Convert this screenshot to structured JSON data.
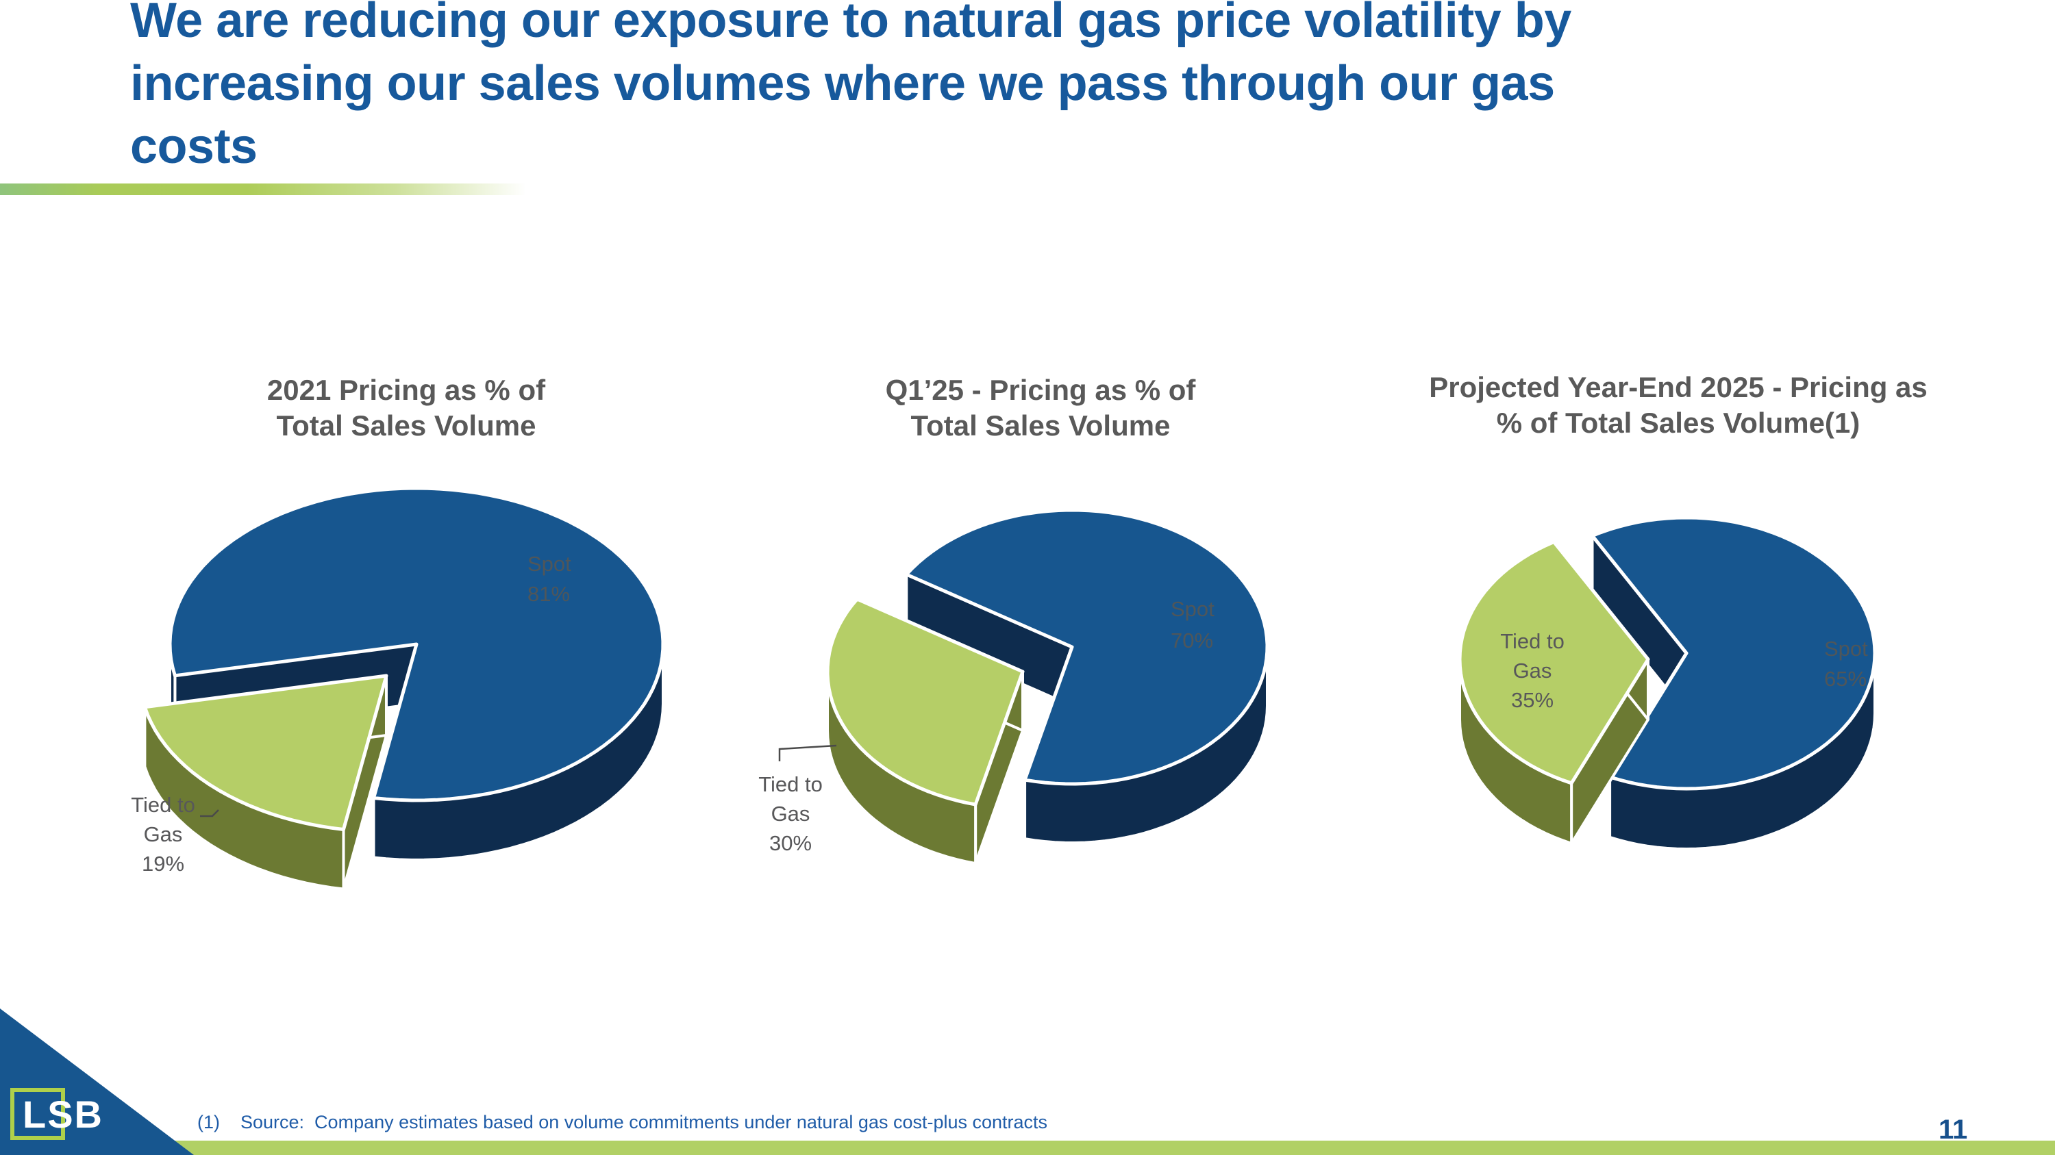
{
  "slide": {
    "title": "We are reducing our exposure to natural gas price volatility by\nincreasing our sales volumes where we pass through our gas\ncosts",
    "footnote": "(1)    Source:  Company estimates based on volume commitments under natural gas cost-plus contracts",
    "page_number": "11",
    "logo_text": "LSB"
  },
  "colors": {
    "title_blue": "#17599C",
    "chart_title_gray": "#595959",
    "footnote_blue": "#1F5CA8",
    "accent_bar_green": "#B1D065",
    "pie_blue": "#17568F",
    "pie_blue_dark": "#0E2C4E",
    "pie_green": "#B5CE67",
    "pie_green_dark": "#6C7A33",
    "pie_label_on_blue": "#4F565A",
    "pie_label_gray": "#58585A",
    "leader_line_gray": "#4A4A4A",
    "logo_blue": "#17568F",
    "logo_green": "#AFD04A"
  },
  "chart_data": [
    {
      "type": "pie",
      "title": "2021 Pricing as % of\nTotal Sales Volume",
      "legend_position": "none",
      "slices": [
        {
          "label": "Spot",
          "value": 81,
          "value_label": "81%",
          "label_lines": [
            "Spot",
            "81%"
          ],
          "color": "#17568F",
          "side_color": "#0E2C4E",
          "exploded": false
        },
        {
          "label": "Tied to Gas",
          "value": 19,
          "value_label": "19%",
          "label_lines": [
            "Tied to",
            "Gas",
            "19%"
          ],
          "color": "#B5CE67",
          "side_color": "#6C7A33",
          "exploded": true
        }
      ]
    },
    {
      "type": "pie",
      "title": "Q1’25 - Pricing as % of\nTotal Sales Volume",
      "legend_position": "none",
      "slices": [
        {
          "label": "Spot",
          "value": 70,
          "value_label": "70%",
          "label_lines": [
            "Spot",
            "70%"
          ],
          "color": "#17568F",
          "side_color": "#0E2C4E",
          "exploded": false
        },
        {
          "label": "Tied to Gas",
          "value": 30,
          "value_label": "30%",
          "label_lines": [
            "Tied to",
            "Gas",
            "30%"
          ],
          "color": "#B5CE67",
          "side_color": "#6C7A33",
          "exploded": true
        }
      ]
    },
    {
      "type": "pie",
      "title": "Projected Year-End 2025 - Pricing as\n% of Total Sales Volume(1)",
      "legend_position": "none",
      "slices": [
        {
          "label": "Spot",
          "value": 65,
          "value_label": "65%",
          "label_lines": [
            "Spot",
            "65%"
          ],
          "color": "#17568F",
          "side_color": "#0E2C4E",
          "exploded": false
        },
        {
          "label": "Tied to Gas",
          "value": 35,
          "value_label": "35%",
          "label_lines": [
            "Tied to",
            "Gas",
            "35%"
          ],
          "color": "#B5CE67",
          "side_color": "#6C7A33",
          "exploded": true
        }
      ]
    }
  ]
}
